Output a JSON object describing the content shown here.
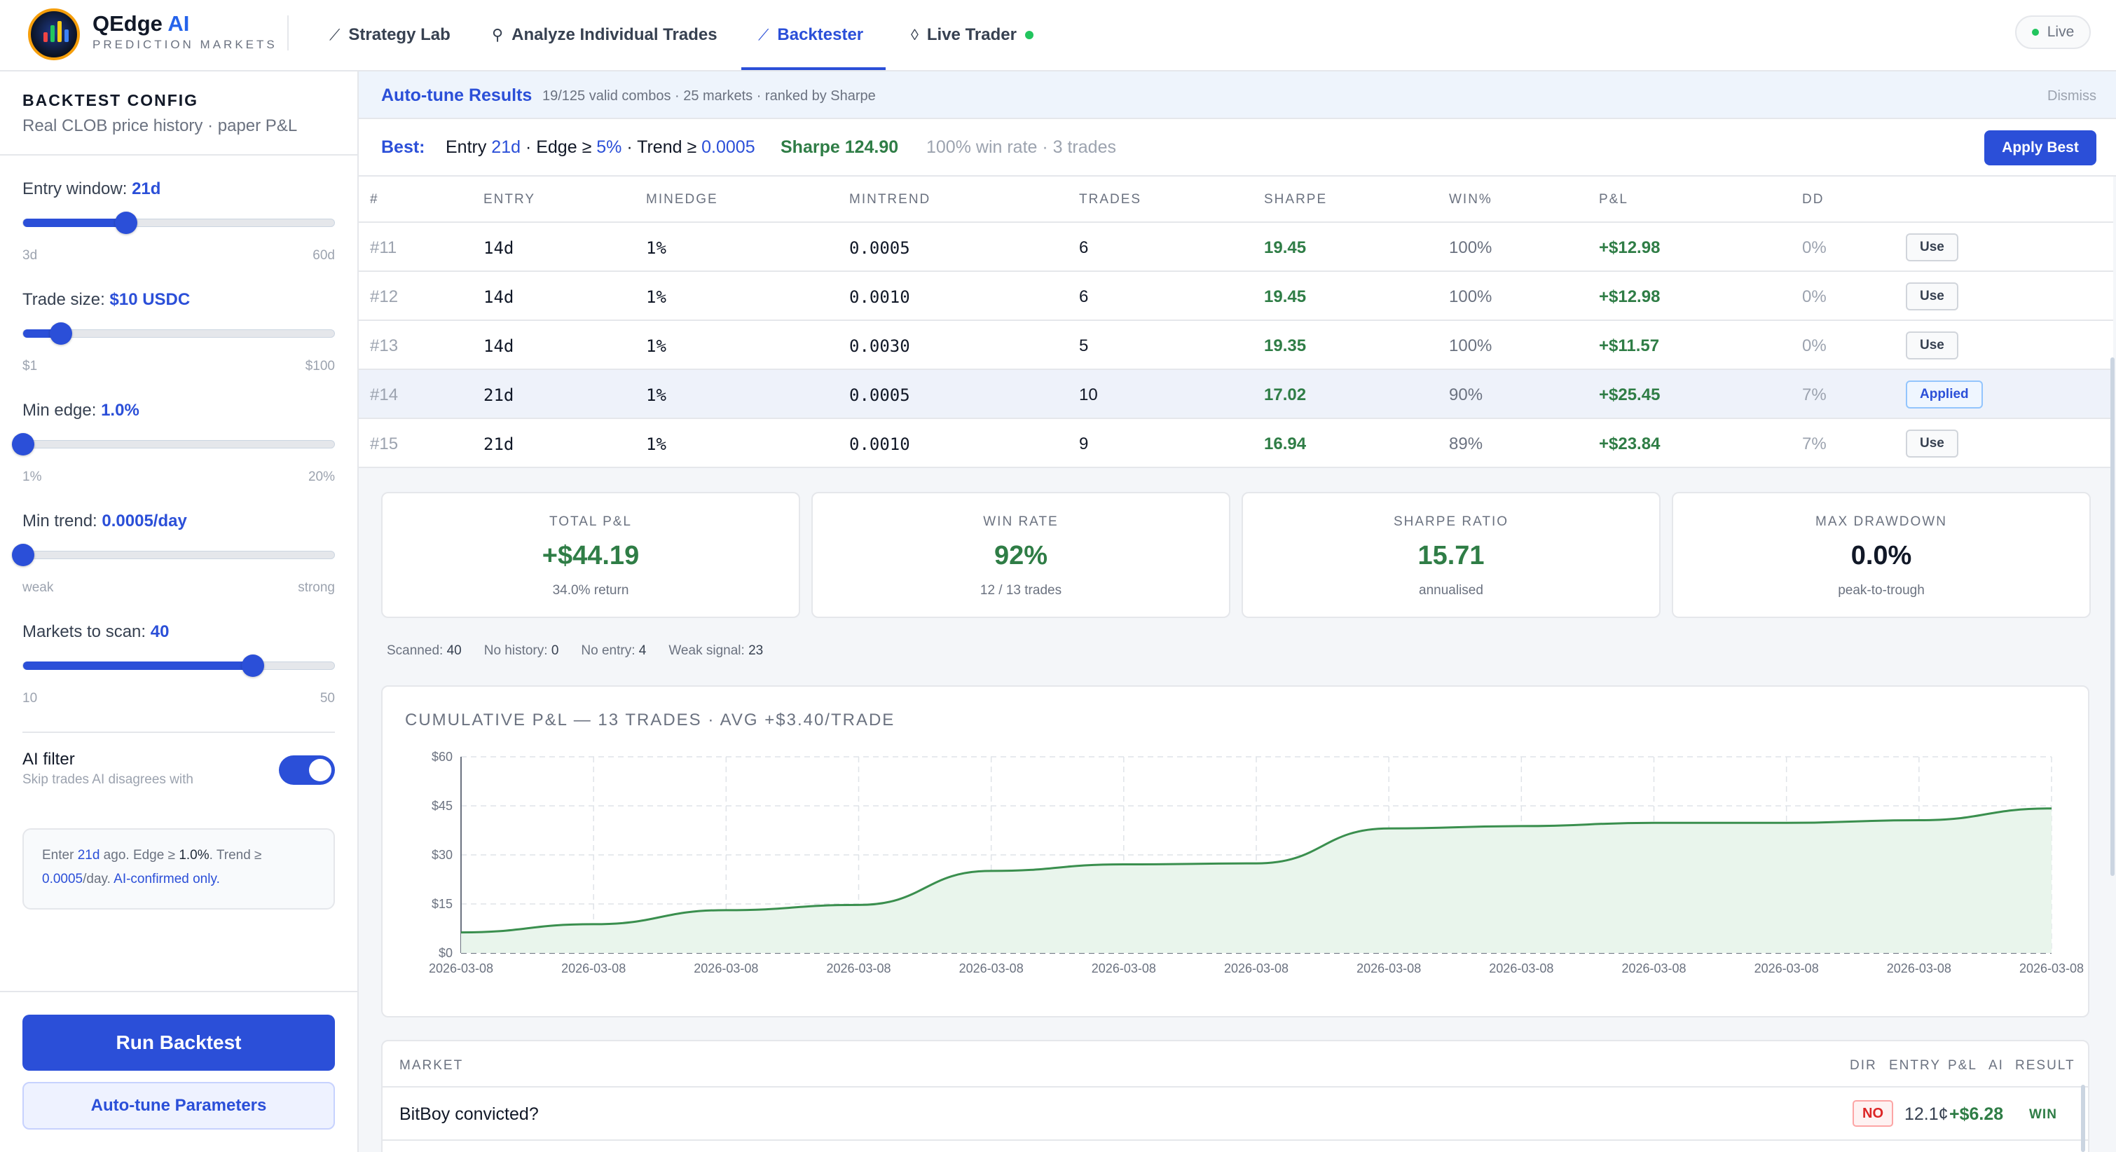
{
  "app": {
    "title": "QEdge",
    "title_ai": "AI",
    "subtitle": "PREDICTION MARKETS",
    "live_label": "Live"
  },
  "nav": [
    {
      "label": "Strategy Lab",
      "icon": "trend-icon"
    },
    {
      "label": "Analyze Individual Trades",
      "icon": "key-icon"
    },
    {
      "label": "Backtester",
      "icon": "chart-line-icon",
      "active": true
    },
    {
      "label": "Live Trader",
      "icon": "drop-icon",
      "status_color": "#22c55e"
    }
  ],
  "sidebar": {
    "title": "BACKTEST CONFIG",
    "subtitle": "Real CLOB price history · paper P&L",
    "entry_window": {
      "label": "Entry window:",
      "value": "21d",
      "min": "3d",
      "max": "60d",
      "fraction": 0.33
    },
    "trade_size": {
      "label": "Trade size:",
      "value": "$10 USDC",
      "min": "$1",
      "max": "$100",
      "fraction": 0.12
    },
    "min_edge": {
      "label": "Min edge:",
      "value": "1.0%",
      "min": "1%",
      "max": "20%",
      "fraction": 0.0
    },
    "min_trend": {
      "label": "Min trend:",
      "value": "0.0005/day",
      "min": "weak",
      "max": "strong",
      "fraction": 0.0
    },
    "markets_to_scan": {
      "label": "Markets to scan:",
      "value": "40",
      "min": "10",
      "max": "50",
      "fraction": 0.735
    },
    "ai_filter": {
      "label": "AI filter",
      "sub": "Skip trades AI disagrees with",
      "enabled": true
    },
    "summary": {
      "p1": "Enter ",
      "entry": "21d",
      "p2": " ago. Edge ≥ ",
      "edge": "1.0%",
      "p3": ". Trend ≥",
      "trend": "0.0005",
      "p4": "/day. ",
      "ai": "AI-confirmed only."
    },
    "run_label": "Run Backtest",
    "tune_label": "Auto-tune Parameters"
  },
  "autotune": {
    "title": "Auto-tune Results",
    "summary": "19/125 valid combos · 25 markets · ranked by Sharpe",
    "dismiss": "Dismiss",
    "best": {
      "label": "Best:",
      "entry_prefix": "Entry ",
      "entry": "21d",
      "edge_prefix": " · Edge ≥ ",
      "edge": "5%",
      "trend_prefix": " · Trend ≥ ",
      "trend": "0.0005",
      "sharpe": "Sharpe 124.90",
      "rest": "100% win rate · 3 trades"
    },
    "apply_label": "Apply Best",
    "columns": [
      "#",
      "ENTRY",
      "MINEDGE",
      "MINTREND",
      "TRADES",
      "SHARPE",
      "WIN%",
      "P&L",
      "DD"
    ],
    "rows": [
      {
        "idx": "#11",
        "entry": "14d",
        "minedge": "1%",
        "mintrend": "0.0005",
        "trades": "6",
        "sharpe": "19.45",
        "win": "100%",
        "pnl": "+$12.98",
        "dd": "0%",
        "action": "Use"
      },
      {
        "idx": "#12",
        "entry": "14d",
        "minedge": "1%",
        "mintrend": "0.0010",
        "trades": "6",
        "sharpe": "19.45",
        "win": "100%",
        "pnl": "+$12.98",
        "dd": "0%",
        "action": "Use"
      },
      {
        "idx": "#13",
        "entry": "14d",
        "minedge": "1%",
        "mintrend": "0.0030",
        "trades": "5",
        "sharpe": "19.35",
        "win": "100%",
        "pnl": "+$11.57",
        "dd": "0%",
        "action": "Use"
      },
      {
        "idx": "#14",
        "entry": "21d",
        "minedge": "1%",
        "mintrend": "0.0005",
        "trades": "10",
        "sharpe": "17.02",
        "win": "90%",
        "pnl": "+$25.45",
        "dd": "7%",
        "action": "Applied"
      },
      {
        "idx": "#15",
        "entry": "21d",
        "minedge": "1%",
        "mintrend": "0.0010",
        "trades": "9",
        "sharpe": "16.94",
        "win": "89%",
        "pnl": "+$23.84",
        "dd": "7%",
        "action": "Use"
      }
    ]
  },
  "stats": [
    {
      "label": "TOTAL P&L",
      "value": "+$44.19",
      "sub": "34.0% return",
      "positive": true
    },
    {
      "label": "WIN RATE",
      "value": "92%",
      "sub": "12 / 13 trades",
      "positive": true
    },
    {
      "label": "SHARPE RATIO",
      "value": "15.71",
      "sub": "annualised",
      "positive": true
    },
    {
      "label": "MAX DRAWDOWN",
      "value": "0.0%",
      "sub": "peak-to-trough",
      "positive": false
    }
  ],
  "counts": [
    {
      "label": "Scanned:",
      "value": "40"
    },
    {
      "label": "No history:",
      "value": "0"
    },
    {
      "label": "No entry:",
      "value": "4"
    },
    {
      "label": "Weak signal:",
      "value": "23"
    }
  ],
  "chart_data": {
    "type": "area",
    "title": "CUMULATIVE P&L — 13 TRADES · AVG +$3.40/TRADE",
    "x": [
      "2026-03-08",
      "2026-03-08",
      "2026-03-08",
      "2026-03-08",
      "2026-03-08",
      "2026-03-08",
      "2026-03-08",
      "2026-03-08",
      "2026-03-08",
      "2026-03-08",
      "2026-03-08",
      "2026-03-08",
      "2026-03-08"
    ],
    "values": [
      6.3,
      8.8,
      13.1,
      14.7,
      25.1,
      27.1,
      27.4,
      38.1,
      38.8,
      39.8,
      39.8,
      40.6,
      44.2
    ],
    "y_ticks": [
      "$0",
      "$15",
      "$30",
      "$45",
      "$60"
    ],
    "ylim": [
      0,
      60
    ],
    "grid": true,
    "line_color": "#3a8f4e",
    "fill_color": "#e9f5ec"
  },
  "trades": {
    "columns": [
      "MARKET",
      "DIR",
      "ENTRY",
      "P&L",
      "AI",
      "RESULT"
    ],
    "rows": [
      {
        "market": "BitBoy convicted?",
        "dir": "NO",
        "entry": "12.1¢",
        "pnl": "+$6.28",
        "result": "WIN"
      }
    ]
  }
}
